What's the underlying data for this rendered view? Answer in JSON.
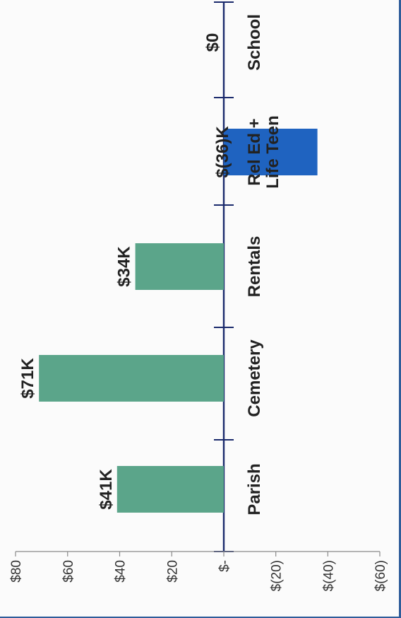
{
  "chart_data": {
    "type": "bar",
    "orientation": "rotated-90-clockwise",
    "title": "",
    "xlabel": "",
    "ylabel": "",
    "categories": [
      "Parish",
      "Cemetery",
      "Rentals",
      "Rel Ed + Life Teen",
      "School"
    ],
    "category_lines": [
      [
        "Parish"
      ],
      [
        "Cemetery"
      ],
      [
        "Rentals"
      ],
      [
        "Rel Ed +",
        "Life Teen"
      ],
      [
        "School"
      ]
    ],
    "values": [
      41,
      71,
      34,
      -36,
      0
    ],
    "value_labels": [
      "$41K",
      "$71K",
      "$34K",
      "$(36)K",
      "$0"
    ],
    "bar_colors": [
      "#5ba58a",
      "#5ba58a",
      "#5ba58a",
      "#1f63c0",
      "#5ba58a"
    ],
    "ylim": [
      -60,
      80
    ],
    "y_ticks": [
      80,
      60,
      40,
      20,
      0,
      -20,
      -40,
      -60
    ],
    "y_tick_labels": [
      "$80",
      "$60",
      "$40",
      "$20",
      "$-",
      "$(20)",
      "$(40)",
      "$(60)"
    ],
    "grid": false,
    "legend": "none"
  },
  "colors": {
    "positive_bar": "#5ba58a",
    "negative_bar": "#1f63c0",
    "axis_line": "#1a2a6c",
    "text": "#222222"
  }
}
